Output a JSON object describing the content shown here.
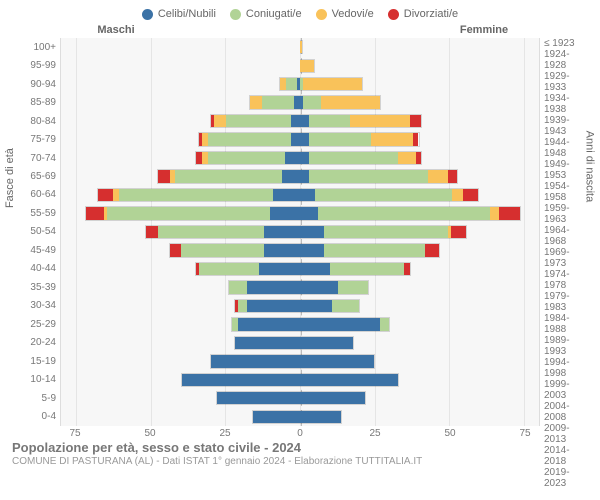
{
  "legend": [
    {
      "label": "Celibi/Nubili",
      "color": "#3b72a6"
    },
    {
      "label": "Coniugati/e",
      "color": "#b1d396"
    },
    {
      "label": "Vedovi/e",
      "color": "#f9c25a"
    },
    {
      "label": "Divorziati/e",
      "color": "#d62f2f"
    }
  ],
  "header_male": "Maschi",
  "header_female": "Femmine",
  "ylabel_left": "Fasce di età",
  "ylabel_right": "Anni di nascita",
  "age_groups": [
    "100+",
    "95-99",
    "90-94",
    "85-89",
    "80-84",
    "75-79",
    "70-74",
    "65-69",
    "60-64",
    "55-59",
    "50-54",
    "45-49",
    "40-44",
    "35-39",
    "30-34",
    "25-29",
    "20-24",
    "15-19",
    "10-14",
    "5-9",
    "0-4"
  ],
  "birth_years": [
    "≤ 1923",
    "1924-1928",
    "1929-1933",
    "1934-1938",
    "1939-1943",
    "1944-1948",
    "1949-1953",
    "1954-1958",
    "1959-1963",
    "1964-1968",
    "1969-1973",
    "1974-1978",
    "1979-1983",
    "1984-1988",
    "1989-1993",
    "1994-1998",
    "1999-2003",
    "2004-2008",
    "2009-2013",
    "2014-2018",
    "2019-2023"
  ],
  "xmax": 80,
  "xticks": [
    75,
    50,
    25,
    0,
    25,
    50,
    75
  ],
  "grid_positions_pct": [
    3.125,
    18.75,
    34.375,
    50,
    65.625,
    81.25,
    96.875
  ],
  "bars": [
    {
      "m": {
        "c": 0,
        "g": 0,
        "v": 0,
        "d": 0
      },
      "f": {
        "c": 0,
        "g": 0,
        "v": 1,
        "d": 0
      }
    },
    {
      "m": {
        "c": 0,
        "g": 0,
        "v": 0,
        "d": 0
      },
      "f": {
        "c": 0,
        "g": 0,
        "v": 5,
        "d": 0
      }
    },
    {
      "m": {
        "c": 1,
        "g": 4,
        "v": 2,
        "d": 0
      },
      "f": {
        "c": 0,
        "g": 1,
        "v": 20,
        "d": 0
      }
    },
    {
      "m": {
        "c": 2,
        "g": 11,
        "v": 4,
        "d": 0
      },
      "f": {
        "c": 1,
        "g": 6,
        "v": 20,
        "d": 0
      }
    },
    {
      "m": {
        "c": 3,
        "g": 22,
        "v": 4,
        "d": 1
      },
      "f": {
        "c": 3,
        "g": 14,
        "v": 20,
        "d": 4
      }
    },
    {
      "m": {
        "c": 3,
        "g": 28,
        "v": 2,
        "d": 1
      },
      "f": {
        "c": 3,
        "g": 21,
        "v": 14,
        "d": 2
      }
    },
    {
      "m": {
        "c": 5,
        "g": 26,
        "v": 2,
        "d": 2
      },
      "f": {
        "c": 3,
        "g": 30,
        "v": 6,
        "d": 2
      }
    },
    {
      "m": {
        "c": 6,
        "g": 36,
        "v": 2,
        "d": 4
      },
      "f": {
        "c": 3,
        "g": 40,
        "v": 7,
        "d": 3
      }
    },
    {
      "m": {
        "c": 9,
        "g": 52,
        "v": 2,
        "d": 5
      },
      "f": {
        "c": 5,
        "g": 46,
        "v": 4,
        "d": 5
      }
    },
    {
      "m": {
        "c": 10,
        "g": 55,
        "v": 1,
        "d": 6
      },
      "f": {
        "c": 6,
        "g": 58,
        "v": 3,
        "d": 7
      }
    },
    {
      "m": {
        "c": 12,
        "g": 36,
        "v": 0,
        "d": 4
      },
      "f": {
        "c": 8,
        "g": 42,
        "v": 1,
        "d": 5
      }
    },
    {
      "m": {
        "c": 12,
        "g": 28,
        "v": 0,
        "d": 4
      },
      "f": {
        "c": 8,
        "g": 34,
        "v": 0,
        "d": 5
      }
    },
    {
      "m": {
        "c": 14,
        "g": 20,
        "v": 0,
        "d": 1
      },
      "f": {
        "c": 10,
        "g": 25,
        "v": 0,
        "d": 2
      }
    },
    {
      "m": {
        "c": 18,
        "g": 6,
        "v": 0,
        "d": 0
      },
      "f": {
        "c": 13,
        "g": 10,
        "v": 0,
        "d": 0
      }
    },
    {
      "m": {
        "c": 18,
        "g": 3,
        "v": 0,
        "d": 1
      },
      "f": {
        "c": 11,
        "g": 9,
        "v": 0,
        "d": 0
      }
    },
    {
      "m": {
        "c": 21,
        "g": 2,
        "v": 0,
        "d": 0
      },
      "f": {
        "c": 27,
        "g": 3,
        "v": 0,
        "d": 0
      }
    },
    {
      "m": {
        "c": 22,
        "g": 0,
        "v": 0,
        "d": 0
      },
      "f": {
        "c": 18,
        "g": 0,
        "v": 0,
        "d": 0
      }
    },
    {
      "m": {
        "c": 30,
        "g": 0,
        "v": 0,
        "d": 0
      },
      "f": {
        "c": 25,
        "g": 0,
        "v": 0,
        "d": 0
      }
    },
    {
      "m": {
        "c": 40,
        "g": 0,
        "v": 0,
        "d": 0
      },
      "f": {
        "c": 33,
        "g": 0,
        "v": 0,
        "d": 0
      }
    },
    {
      "m": {
        "c": 28,
        "g": 0,
        "v": 0,
        "d": 0
      },
      "f": {
        "c": 22,
        "g": 0,
        "v": 0,
        "d": 0
      }
    },
    {
      "m": {
        "c": 16,
        "g": 0,
        "v": 0,
        "d": 0
      },
      "f": {
        "c": 14,
        "g": 0,
        "v": 0,
        "d": 0
      }
    }
  ],
  "colors": {
    "c": "#3b72a6",
    "g": "#b1d396",
    "v": "#f9c25a",
    "d": "#d62f2f"
  },
  "title": "Popolazione per età, sesso e stato civile - 2024",
  "subtitle": "COMUNE DI PASTURANA (AL) - Dati ISTAT 1° gennaio 2024 - Elaborazione TUTTITALIA.IT"
}
